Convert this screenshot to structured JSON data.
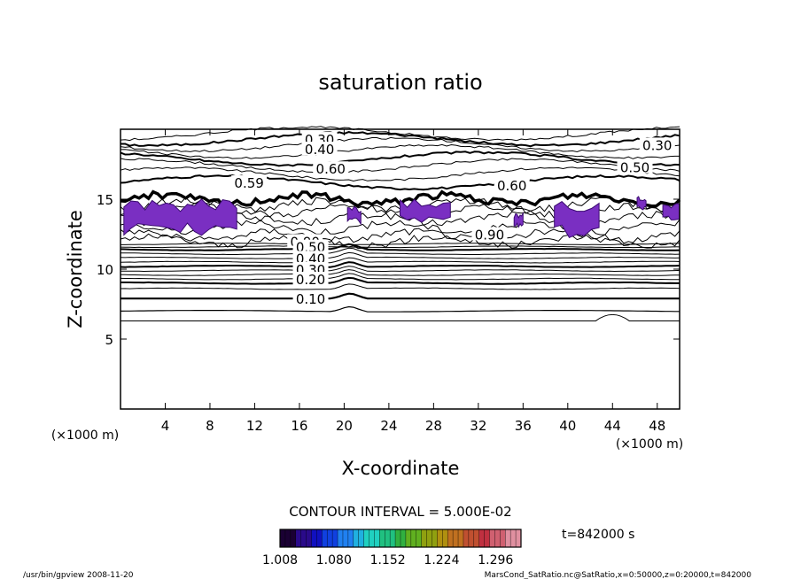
{
  "chart_data": {
    "type": "contour",
    "title": "saturation ratio",
    "xlabel": "X-coordinate",
    "ylabel": "Z-coordinate",
    "x_unit": "(×1000 m)",
    "z_unit": "(×1000 m)",
    "xlim": [
      0,
      50
    ],
    "ylim": [
      0,
      20
    ],
    "x_ticks": [
      "4",
      "8",
      "12",
      "16",
      "20",
      "24",
      "28",
      "32",
      "36",
      "40",
      "44",
      "48"
    ],
    "y_ticks": [
      "5",
      "10",
      "15"
    ],
    "contour_interval_text": "CONTOUR INTERVAL = 5.000E-02",
    "time_text": "t=842000 s",
    "contour_labels": [
      {
        "text": "0.30",
        "x": 17.8,
        "z": 19.3
      },
      {
        "text": "0.40",
        "x": 17.8,
        "z": 18.6
      },
      {
        "text": "0.30",
        "x": 48.0,
        "z": 18.9
      },
      {
        "text": "0.50",
        "x": 46.0,
        "z": 17.3
      },
      {
        "text": "0.60",
        "x": 18.8,
        "z": 17.2
      },
      {
        "text": "0.59",
        "x": 11.5,
        "z": 16.2
      },
      {
        "text": "0.60",
        "x": 35.0,
        "z": 16.0
      },
      {
        "text": "0.90",
        "x": 33.0,
        "z": 12.5
      },
      {
        "text": "0.90",
        "x": 16.5,
        "z": 12.0
      },
      {
        "text": "0.50",
        "x": 17.0,
        "z": 11.6
      },
      {
        "text": "0.40",
        "x": 17.0,
        "z": 10.8
      },
      {
        "text": "0.30",
        "x": 17.0,
        "z": 10.0
      },
      {
        "text": "0.20",
        "x": 17.0,
        "z": 9.3
      },
      {
        "text": "0.10",
        "x": 17.0,
        "z": 7.9
      }
    ],
    "colorbar": {
      "min": 1.008,
      "max": 1.33,
      "tick_labels": [
        "1.008",
        "1.080",
        "1.152",
        "1.224",
        "1.296"
      ],
      "colors": [
        "#1a0033",
        "#2a0a8a",
        "#1010c0",
        "#1040e0",
        "#2080f0",
        "#20b0e0",
        "#20d0c0",
        "#20c080",
        "#30b040",
        "#60b020",
        "#90a010",
        "#b09010",
        "#c07020",
        "#c05030",
        "#c03040",
        "#d06070",
        "#e090a0"
      ]
    },
    "supersaturated_regions": [
      {
        "x": [
          0.3,
          10.4
        ],
        "z": [
          12.4,
          15.0
        ]
      },
      {
        "x": [
          20.3,
          21.5
        ],
        "z": [
          13.2,
          14.5
        ]
      },
      {
        "x": [
          25.0,
          29.5
        ],
        "z": [
          13.3,
          15.0
        ]
      },
      {
        "x": [
          35.2,
          36.0
        ],
        "z": [
          13.0,
          14.0
        ]
      },
      {
        "x": [
          38.8,
          42.8
        ],
        "z": [
          12.2,
          15.0
        ]
      },
      {
        "x": [
          46.2,
          47.0
        ],
        "z": [
          14.2,
          15.2
        ]
      },
      {
        "x": [
          48.5,
          50.0
        ],
        "z": [
          13.5,
          14.8
        ]
      }
    ]
  },
  "footer": {
    "left": "/usr/bin/gpview   2008-11-20",
    "right": "MarsCond_SatRatio.nc@SatRatio,x=0:50000,z=0:20000,t=842000"
  }
}
